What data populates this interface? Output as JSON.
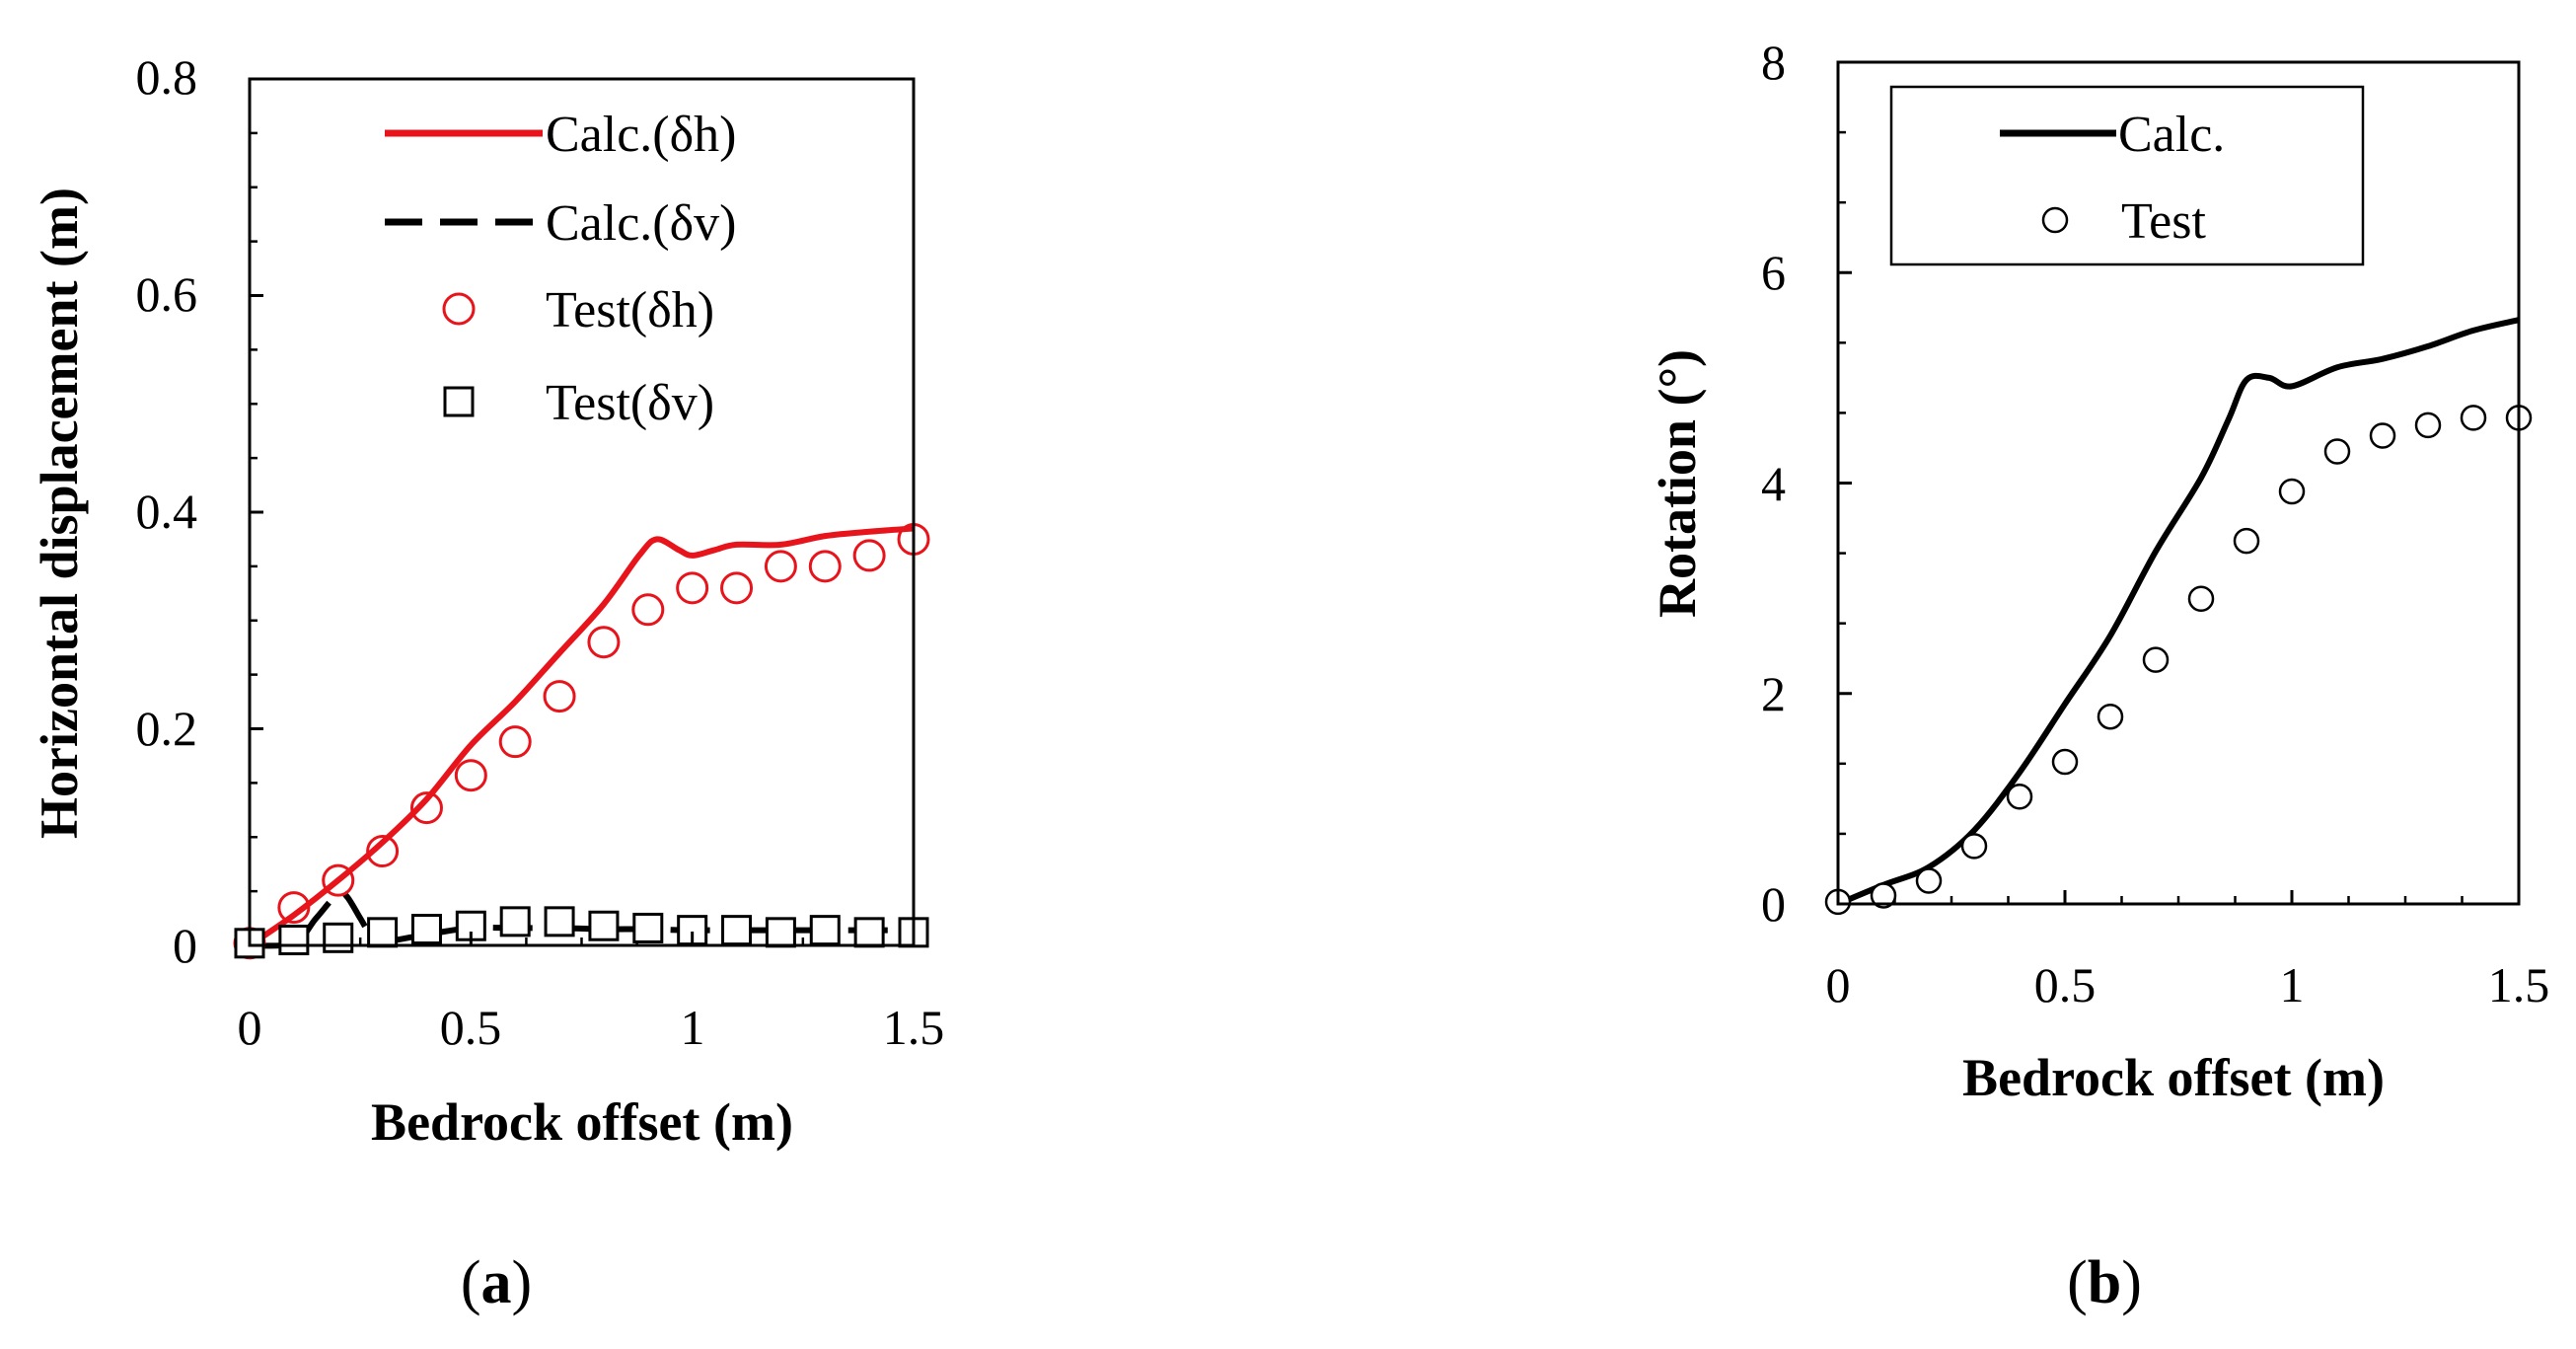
{
  "chart_data": [
    {
      "type": "line",
      "panel_label": "(a)",
      "panel_letter": "a",
      "xlabel": "Bedrock offset (m)",
      "ylabel": "Horizontal displacement (m)",
      "xlim": [
        0,
        1.5
      ],
      "ylim": [
        0,
        0.8
      ],
      "xticks": [
        "0",
        "0.5",
        "1",
        "1.5"
      ],
      "yticks": [
        "0",
        "0.2",
        "0.4",
        "0.6",
        "0.8"
      ],
      "xtick_values": [
        0,
        0.5,
        1,
        1.5
      ],
      "ytick_values": [
        0,
        0.2,
        0.4,
        0.6,
        0.8
      ],
      "legend_position": "top-right",
      "series": [
        {
          "name": "Calc.(δh)",
          "kind": "line",
          "style": "solid",
          "color": "#e8141b",
          "x": [
            0,
            0.1,
            0.2,
            0.3,
            0.4,
            0.5,
            0.6,
            0.7,
            0.8,
            0.88,
            0.92,
            0.97,
            1.0,
            1.05,
            1.1,
            1.2,
            1.3,
            1.4,
            1.5
          ],
          "y": [
            0,
            0.028,
            0.06,
            0.095,
            0.135,
            0.185,
            0.225,
            0.27,
            0.315,
            0.36,
            0.375,
            0.365,
            0.36,
            0.365,
            0.37,
            0.37,
            0.378,
            0.382,
            0.385
          ]
        },
        {
          "name": "Calc.(δv)",
          "kind": "line",
          "style": "dashed",
          "color": "#000000",
          "x": [
            0,
            0.1,
            0.15,
            0.2,
            0.22,
            0.25,
            0.28,
            0.3,
            0.4,
            0.5,
            0.6,
            0.7,
            0.8,
            0.9,
            1.0,
            1.2,
            1.4,
            1.5
          ],
          "y": [
            0,
            0.002,
            0.025,
            0.048,
            0.045,
            0.025,
            0.005,
            0.003,
            0.01,
            0.016,
            0.016,
            0.016,
            0.015,
            0.015,
            0.014,
            0.014,
            0.014,
            0.014
          ]
        },
        {
          "name": "Test(δh)",
          "kind": "scatter",
          "marker": "circle",
          "color": "#e8141b",
          "x": [
            0,
            0.1,
            0.2,
            0.3,
            0.4,
            0.5,
            0.6,
            0.7,
            0.8,
            0.9,
            1.0,
            1.1,
            1.2,
            1.3,
            1.4,
            1.5
          ],
          "y": [
            0.002,
            0.035,
            0.06,
            0.087,
            0.127,
            0.157,
            0.188,
            0.23,
            0.28,
            0.31,
            0.33,
            0.33,
            0.35,
            0.35,
            0.36,
            0.375
          ]
        },
        {
          "name": "Test(δv)",
          "kind": "scatter",
          "marker": "square",
          "color": "#000000",
          "x": [
            0,
            0.1,
            0.2,
            0.3,
            0.4,
            0.5,
            0.6,
            0.7,
            0.8,
            0.9,
            1.0,
            1.1,
            1.2,
            1.3,
            1.4,
            1.5
          ],
          "y": [
            0.002,
            0.005,
            0.007,
            0.012,
            0.015,
            0.018,
            0.022,
            0.022,
            0.018,
            0.016,
            0.014,
            0.014,
            0.012,
            0.014,
            0.012,
            0.012
          ]
        }
      ]
    },
    {
      "type": "line",
      "panel_label": "(b)",
      "panel_letter": "b",
      "xlabel": "Bedrock offset (m)",
      "ylabel": "Rotation (°)",
      "xlim": [
        0,
        1.5
      ],
      "ylim": [
        0,
        8
      ],
      "xticks": [
        "0",
        "0.5",
        "1",
        "1.5"
      ],
      "yticks": [
        "0",
        "2",
        "4",
        "6",
        "8"
      ],
      "xtick_values": [
        0,
        0.5,
        1,
        1.5
      ],
      "ytick_values": [
        0,
        2,
        4,
        6,
        8
      ],
      "legend_position": "top-left",
      "series": [
        {
          "name": "Calc.",
          "kind": "line",
          "style": "solid",
          "color": "#000000",
          "x": [
            0,
            0.1,
            0.2,
            0.3,
            0.4,
            0.5,
            0.6,
            0.7,
            0.8,
            0.86,
            0.9,
            0.95,
            1.0,
            1.1,
            1.2,
            1.3,
            1.4,
            1.5
          ],
          "y": [
            0,
            0.18,
            0.35,
            0.7,
            1.25,
            1.9,
            2.55,
            3.35,
            4.05,
            4.6,
            4.98,
            5.0,
            4.92,
            5.1,
            5.18,
            5.3,
            5.45,
            5.55
          ]
        },
        {
          "name": "Test",
          "kind": "scatter",
          "marker": "circle",
          "color": "#000000",
          "x": [
            0,
            0.1,
            0.2,
            0.3,
            0.4,
            0.5,
            0.6,
            0.7,
            0.8,
            0.9,
            1.0,
            1.1,
            1.2,
            1.3,
            1.4,
            1.5
          ],
          "y": [
            0.02,
            0.08,
            0.22,
            0.55,
            1.02,
            1.35,
            1.78,
            2.32,
            2.9,
            3.45,
            3.92,
            4.3,
            4.45,
            4.55,
            4.62,
            4.62
          ]
        }
      ]
    }
  ]
}
